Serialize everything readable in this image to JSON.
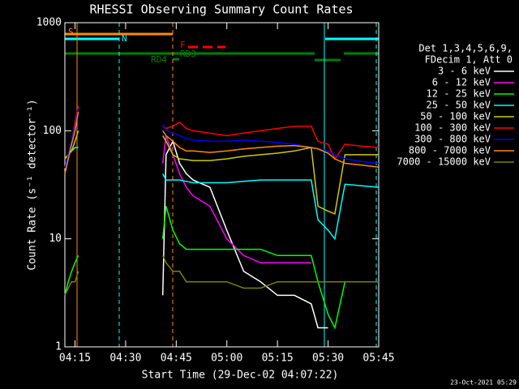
{
  "chart_data": {
    "type": "line",
    "title": "RHESSI Observing Summary Count Rates",
    "x_label": "Start Time (29-Dec-02 04:07:22)",
    "y_label": "Count Rate (s⁻¹ detector⁻¹)",
    "log_scale": true,
    "ylim": [
      1,
      1000
    ],
    "yticks": [
      1,
      10,
      100,
      1000
    ],
    "xlim": [
      "04:12",
      "05:45"
    ],
    "xticks": [
      "04:15",
      "04:30",
      "04:45",
      "05:00",
      "05:15",
      "05:30",
      "05:45"
    ],
    "legend_header": [
      "Det 1,3,4,5,6,9,",
      "FDecim 1, Att 0"
    ],
    "annotations": [
      "S",
      "N",
      "F",
      "RD3",
      "RD4"
    ],
    "footer": "23-Oct-2021 05:29",
    "x": [
      "04:12",
      "04:13",
      "04:14",
      "04:15",
      "04:16",
      "04:28",
      "04:41",
      "04:42",
      "04:44",
      "04:46",
      "04:48",
      "04:50",
      "04:55",
      "05:00",
      "05:05",
      "05:10",
      "05:15",
      "05:20",
      "05:25",
      "05:27",
      "05:30",
      "05:32",
      "05:35",
      "05:40",
      "05:45"
    ],
    "series": [
      {
        "name": "3 - 6 keV",
        "color": "#ffffff",
        "values": [
          null,
          null,
          null,
          null,
          null,
          null,
          3,
          60,
          80,
          50,
          40,
          35,
          30,
          12,
          5,
          4,
          3,
          3,
          2.5,
          1.5,
          1.5,
          null,
          null,
          null,
          null
        ]
      },
      {
        "name": "6 - 12 keV",
        "color": "#ff00ff",
        "values": [
          null,
          null,
          null,
          null,
          null,
          null,
          50,
          90,
          60,
          40,
          30,
          25,
          20,
          10,
          7,
          6,
          6,
          6,
          6,
          null,
          null,
          null,
          null,
          null,
          null
        ]
      },
      {
        "name": "12 - 25 keV",
        "color": "#00ff00",
        "values": [
          3,
          4,
          5,
          6,
          7,
          null,
          10,
          20,
          12,
          9,
          8,
          8,
          8,
          8,
          8,
          8,
          7,
          7,
          7,
          4,
          2,
          1.5,
          4,
          4,
          4
        ]
      },
      {
        "name": "25 - 50 keV",
        "color": "#00ffff",
        "values": [
          55,
          60,
          65,
          70,
          70,
          null,
          40,
          35,
          35,
          35,
          34,
          33,
          33,
          33,
          34,
          35,
          35,
          35,
          35,
          15,
          12,
          10,
          32,
          31,
          30
        ]
      },
      {
        "name": "50 - 100 keV",
        "color": "#cccc00",
        "values": [
          55,
          60,
          65,
          80,
          100,
          null,
          90,
          80,
          60,
          55,
          54,
          53,
          53,
          55,
          58,
          60,
          62,
          65,
          70,
          20,
          18,
          17,
          60,
          60,
          60
        ]
      },
      {
        "name": "100 - 300 keV",
        "color": "#ff0000",
        "values": [
          45,
          60,
          80,
          120,
          170,
          null,
          110,
          105,
          110,
          120,
          105,
          100,
          95,
          90,
          95,
          100,
          105,
          110,
          110,
          80,
          75,
          55,
          75,
          72,
          70
        ]
      },
      {
        "name": "300 - 800 keV",
        "color": "#0000ff",
        "values": [
          45,
          60,
          80,
          110,
          160,
          null,
          115,
          100,
          95,
          90,
          85,
          82,
          80,
          80,
          82,
          80,
          78,
          75,
          70,
          68,
          65,
          60,
          55,
          52,
          50
        ]
      },
      {
        "name": "800 - 7000 keV",
        "color": "#ff8c00",
        "values": [
          40,
          55,
          75,
          100,
          150,
          null,
          100,
          90,
          80,
          70,
          65,
          65,
          63,
          65,
          68,
          70,
          72,
          73,
          70,
          68,
          62,
          55,
          50,
          48,
          46
        ]
      },
      {
        "name": "7000 - 15000 keV",
        "color": "#808000",
        "values": [
          3,
          3.5,
          4,
          4,
          5,
          null,
          7,
          6,
          5,
          5,
          4,
          4,
          4,
          4,
          3.5,
          3.5,
          4,
          4,
          4,
          4,
          4,
          4,
          4,
          4,
          4
        ]
      }
    ]
  }
}
